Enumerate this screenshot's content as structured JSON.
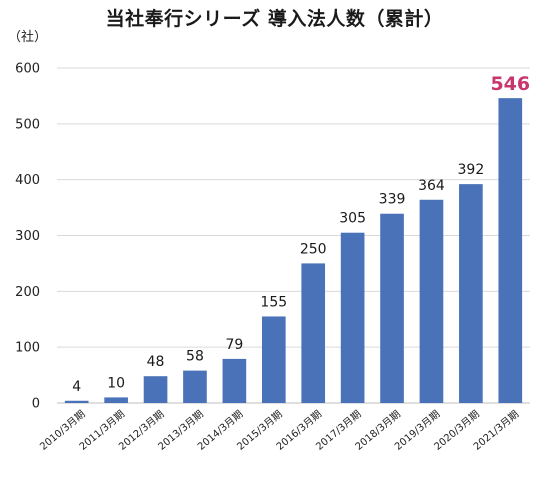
{
  "chart_data": {
    "type": "bar",
    "title": "当社奉行シリーズ 導入法人数（累計）",
    "ylabel": "（社）",
    "xlabel": "",
    "categories": [
      "2010/3月期",
      "2011/3月期",
      "2012/3月期",
      "2013/3月期",
      "2014/3月期",
      "2015/3月期",
      "2016/3月期",
      "2017/3月期",
      "2018/3月期",
      "2019/3月期",
      "2020/3月期",
      "2021/3月期"
    ],
    "values": [
      4,
      10,
      48,
      58,
      79,
      155,
      250,
      305,
      339,
      364,
      392,
      546
    ],
    "ylim": [
      0,
      600
    ],
    "yticks": [
      0,
      100,
      200,
      300,
      400,
      500,
      600
    ],
    "grid": true,
    "legend": "none",
    "bar_color": "#4a72b8",
    "highlight_index": 11,
    "highlight_label_color": "#c7366f"
  }
}
